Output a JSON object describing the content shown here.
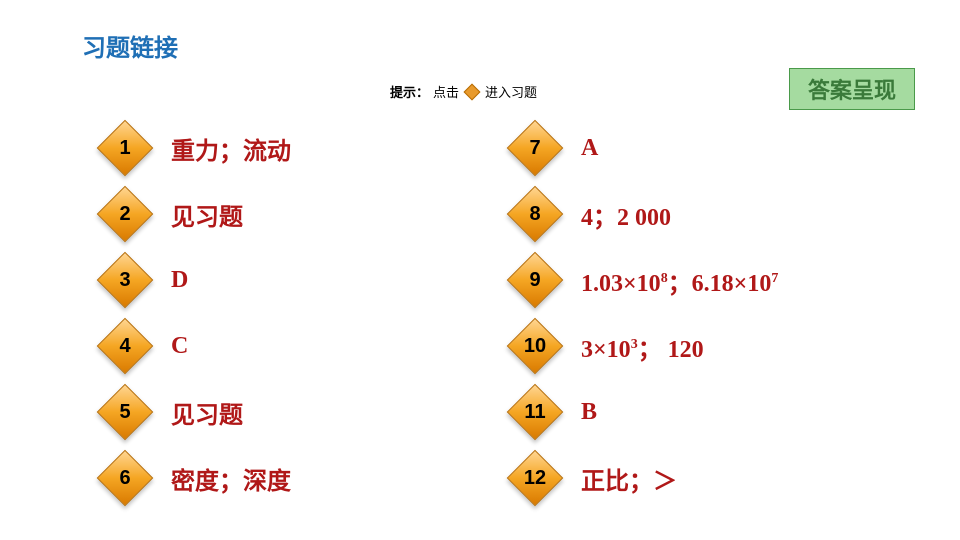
{
  "title": "习题链接",
  "hint_prefix": "提示：",
  "hint_text_before": "点击",
  "hint_text_after": "进入习题",
  "answer_badge": "答案呈现",
  "diamond_fill": "#f5a623",
  "diamond_border": "#b56a00",
  "answer_color": "#b01818",
  "title_color": "#1f6fb5",
  "badge_bg": "#a5dba0",
  "badge_border": "#4a9a4a",
  "left": [
    {
      "n": "1",
      "a": "重力；流动"
    },
    {
      "n": "2",
      "a": "见习题"
    },
    {
      "n": "3",
      "a": "D"
    },
    {
      "n": "4",
      "a": "C"
    },
    {
      "n": "5",
      "a": "见习题"
    },
    {
      "n": "6",
      "a": "密度；深度"
    }
  ],
  "right": [
    {
      "n": "7",
      "a": "A"
    },
    {
      "n": "8",
      "a": "4；2 000"
    },
    {
      "n": "9",
      "a_html": "1.03×10<sup>8</sup>；6.18×10<sup>7</sup>"
    },
    {
      "n": "10",
      "a_html": "3×10<sup>3</sup>； 120"
    },
    {
      "n": "11",
      "a": "B"
    },
    {
      "n": "12",
      "a": "正比；＞"
    }
  ]
}
